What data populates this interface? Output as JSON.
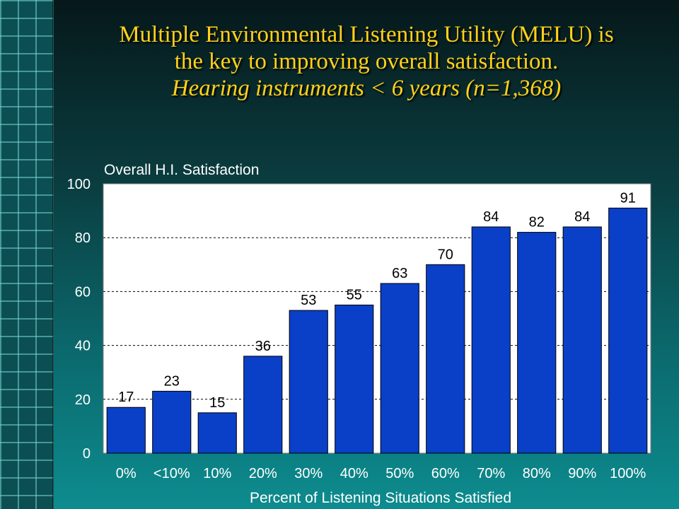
{
  "slide": {
    "title_line1": "Multiple Environmental Listening Utility (MELU) is",
    "title_line2": "the key to improving overall satisfaction.",
    "subtitle": "Hearing instruments < 6 years (n=1,368)"
  },
  "chart_data": {
    "type": "bar",
    "ylabel": "Overall H.I. Satisfaction",
    "xlabel": "Percent of Listening Situations Satisfied",
    "categories": [
      "0%",
      "<10%",
      "10%",
      "20%",
      "30%",
      "40%",
      "50%",
      "60%",
      "70%",
      "80%",
      "90%",
      "100%"
    ],
    "values": [
      17,
      23,
      15,
      36,
      53,
      55,
      63,
      70,
      84,
      82,
      84,
      91
    ],
    "ylim": [
      0,
      100
    ],
    "yticks": [
      0,
      20,
      40,
      60,
      80,
      100
    ],
    "grid": true,
    "bar_color": "#0a3fc8",
    "plot_background": "#ffffff"
  }
}
